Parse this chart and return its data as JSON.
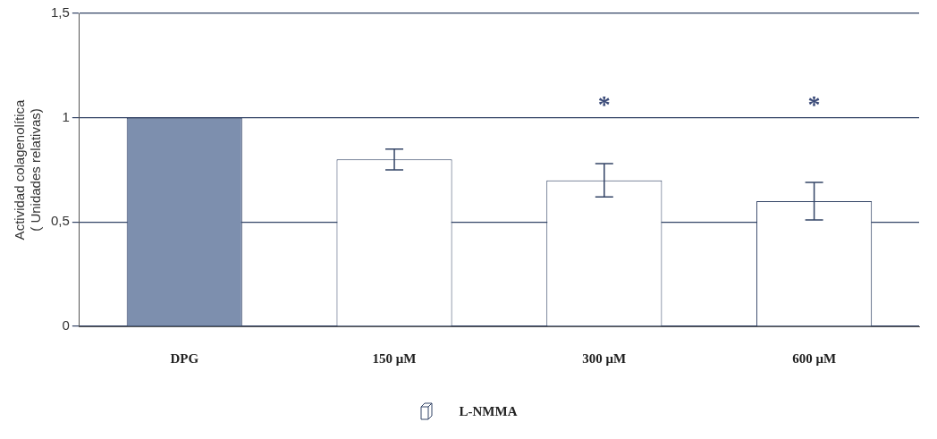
{
  "chart_data": {
    "type": "bar",
    "ylabel": "Actividad colagenolítica\n( Unidades relativas)",
    "categories": [
      "DPG",
      "150 μM",
      "300 μM",
      "600 μM"
    ],
    "series": [
      {
        "name": "L-NMMA",
        "color": "#ffffff",
        "colors": [
          "#7d8fae",
          "#ffffff",
          "#ffffff",
          "#ffffff"
        ],
        "values": [
          1.0,
          0.8,
          0.7,
          0.6
        ],
        "errors": [
          null,
          0.05,
          0.08,
          0.09
        ]
      }
    ],
    "ylim": [
      0,
      1.5
    ],
    "yticks": [
      0,
      {
        "value": 0.5,
        "label": "0,5"
      },
      1,
      {
        "value": 1.5,
        "label": "1,5"
      }
    ],
    "grid": "y",
    "legend": "bottom",
    "annotations": [
      "*",
      "*"
    ]
  }
}
